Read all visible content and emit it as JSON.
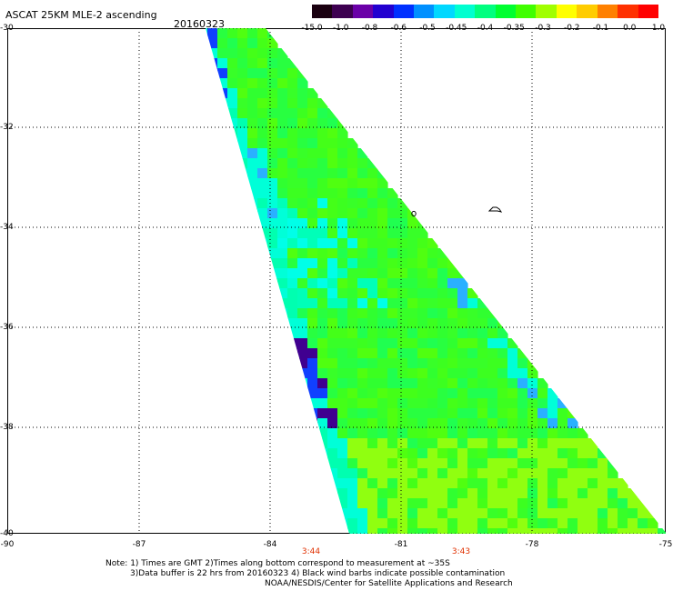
{
  "header": {
    "title": "ASCAT 25KM MLE-2 ascending",
    "date": "20160323"
  },
  "colorbar": {
    "tick_labels": [
      "-15.0",
      "-1.0",
      "-0.8",
      "-0.6",
      "-0.5",
      "-0.45",
      "-0.4",
      "-0.35",
      "-0.3",
      "-0.2",
      "-0.1",
      "0.0",
      "1.0"
    ],
    "colors": [
      "#1a0010",
      "#3d0050",
      "#6a00a8",
      "#2200d0",
      "#0030ff",
      "#0090ff",
      "#00d8ff",
      "#00ffd0",
      "#00ff7f",
      "#00ff30",
      "#40ff00",
      "#a0ff00",
      "#ffff00",
      "#ffcc00",
      "#ff8000",
      "#ff3000",
      "#ff0000"
    ]
  },
  "map": {
    "lat_labels": [
      "-30",
      "-32",
      "-34",
      "-36",
      "-38",
      "-40"
    ],
    "lon_labels": [
      "-90",
      "-87",
      "-84",
      "-81",
      "-78",
      "-75"
    ],
    "time_labels": [
      "3:44",
      "3:43"
    ],
    "swath_colors": {
      "dominant": "#3cff20",
      "cyan": "#00ffd8",
      "blue": "#1040ff",
      "purple": "#400090",
      "lime": "#90ff10"
    }
  },
  "notes": {
    "line1": "Note: 1) Times are GMT 2)Times along bottom correspond to measurement at ~35S",
    "line2": "3)Data buffer is 22 hrs from 20160323 4) Black wind barbs indicate possible contamination",
    "line3": "NOAA/NESDIS/Center for Satellite Applications and Research"
  }
}
